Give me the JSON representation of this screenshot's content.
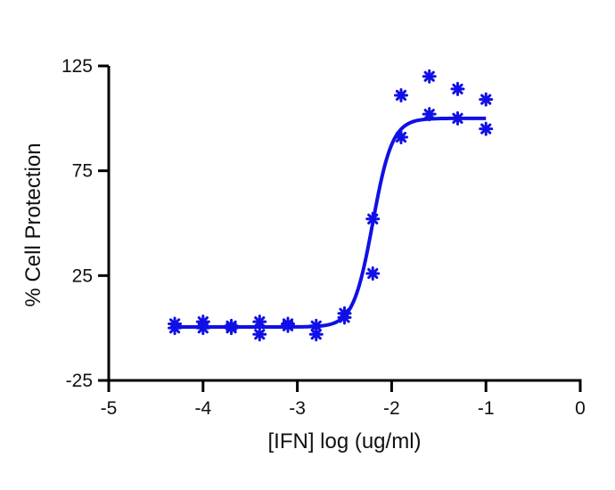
{
  "chart_data": {
    "type": "scatter",
    "title": "",
    "xlabel": "[IFN] log (ug/ml)",
    "ylabel": "% Cell Protection",
    "xlim": [
      -5,
      0
    ],
    "ylim": [
      -25,
      125
    ],
    "xticks": [
      -5,
      -4,
      -3,
      -2,
      -1,
      0
    ],
    "yticks": [
      -25,
      25,
      75,
      125
    ],
    "grid": false,
    "colors": {
      "series": "#1010e6",
      "axis": "#000000"
    },
    "points": [
      {
        "x": -4.3,
        "y": 2
      },
      {
        "x": -4.3,
        "y": 0
      },
      {
        "x": -4.0,
        "y": 3
      },
      {
        "x": -4.0,
        "y": 0
      },
      {
        "x": -3.7,
        "y": 1
      },
      {
        "x": -3.7,
        "y": 0
      },
      {
        "x": -3.4,
        "y": 3
      },
      {
        "x": -3.4,
        "y": -3
      },
      {
        "x": -3.1,
        "y": 2
      },
      {
        "x": -3.1,
        "y": 1
      },
      {
        "x": -2.8,
        "y": 1
      },
      {
        "x": -2.8,
        "y": -3
      },
      {
        "x": -2.5,
        "y": 7
      },
      {
        "x": -2.5,
        "y": 5
      },
      {
        "x": -2.2,
        "y": 52
      },
      {
        "x": -2.2,
        "y": 26
      },
      {
        "x": -1.9,
        "y": 111
      },
      {
        "x": -1.9,
        "y": 91
      },
      {
        "x": -1.6,
        "y": 120
      },
      {
        "x": -1.6,
        "y": 102
      },
      {
        "x": -1.3,
        "y": 114
      },
      {
        "x": -1.3,
        "y": 100
      },
      {
        "x": -1.0,
        "y": 109
      },
      {
        "x": -1.0,
        "y": 95
      }
    ],
    "fit": {
      "model": "sigmoidal dose-response",
      "bottom": 0.5,
      "top": 100,
      "logEC50": -2.2,
      "hill": 4.2,
      "x_from": -4.3,
      "x_to": -1.0
    }
  }
}
